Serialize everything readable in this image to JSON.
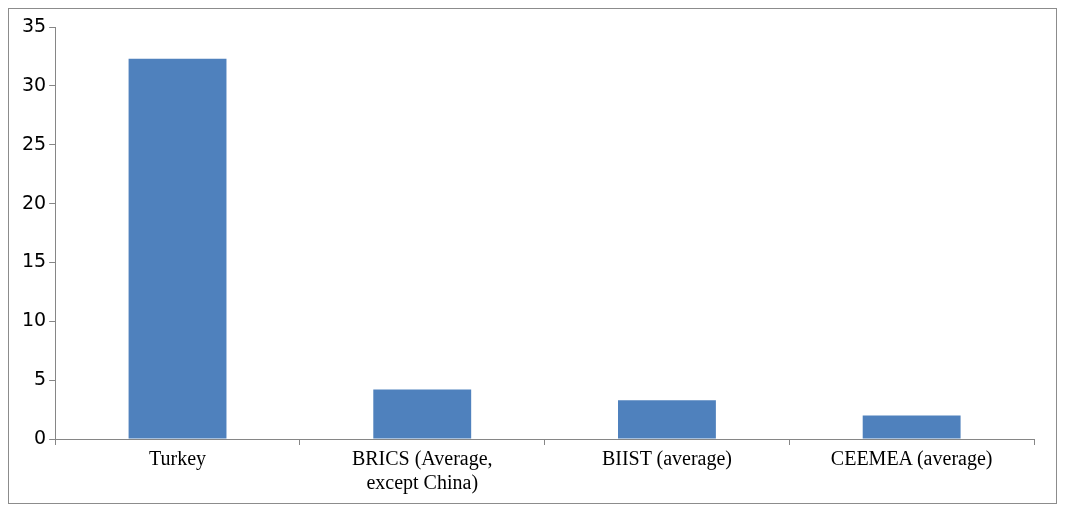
{
  "chart_data": {
    "type": "bar",
    "categories": [
      "Turkey",
      "BRICS (Average, except China)",
      "BIIST (average)",
      "CEEMEA (average)"
    ],
    "values": [
      32.3,
      4.2,
      3.3,
      2.0
    ],
    "color": "#4f81bd",
    "ylim": [
      0,
      35
    ],
    "yticks": [
      0,
      5,
      10,
      15,
      20,
      25,
      30,
      35
    ],
    "grid": false,
    "legend": false
  }
}
